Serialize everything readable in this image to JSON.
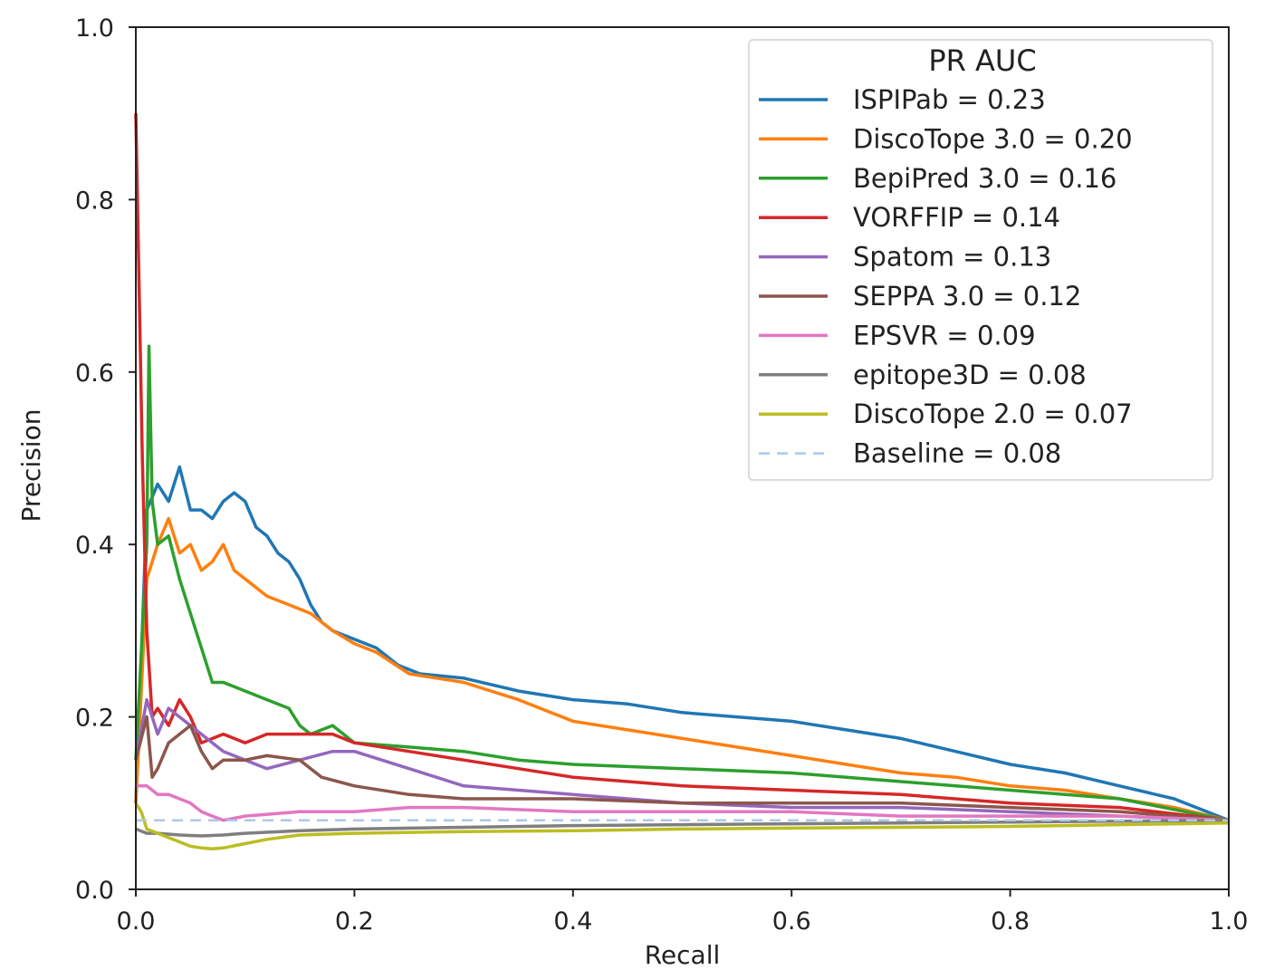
{
  "chart_data": {
    "type": "line",
    "title": "",
    "xlabel": "Recall",
    "ylabel": "Precision",
    "xlim": [
      0.0,
      1.0
    ],
    "ylim": [
      0.0,
      1.0
    ],
    "xticks": [
      "0.0",
      "0.2",
      "0.4",
      "0.6",
      "0.8",
      "1.0"
    ],
    "yticks": [
      "0.0",
      "0.2",
      "0.4",
      "0.6",
      "0.8",
      "1.0"
    ],
    "grid": false,
    "legend": {
      "title": "PR AUC",
      "position": "top-right"
    },
    "series": [
      {
        "name": "ISPIPab = 0.23",
        "color": "#1f77b4",
        "style": "solid",
        "x": [
          0.0,
          0.01,
          0.02,
          0.03,
          0.04,
          0.05,
          0.06,
          0.07,
          0.08,
          0.09,
          0.1,
          0.11,
          0.12,
          0.13,
          0.14,
          0.15,
          0.16,
          0.17,
          0.18,
          0.2,
          0.22,
          0.24,
          0.26,
          0.3,
          0.35,
          0.4,
          0.45,
          0.5,
          0.55,
          0.6,
          0.65,
          0.7,
          0.75,
          0.8,
          0.85,
          0.9,
          0.95,
          1.0
        ],
        "y": [
          0.1,
          0.44,
          0.47,
          0.45,
          0.49,
          0.44,
          0.44,
          0.43,
          0.45,
          0.46,
          0.45,
          0.42,
          0.41,
          0.39,
          0.38,
          0.36,
          0.33,
          0.31,
          0.3,
          0.29,
          0.28,
          0.26,
          0.25,
          0.245,
          0.23,
          0.22,
          0.215,
          0.205,
          0.2,
          0.195,
          0.185,
          0.175,
          0.16,
          0.145,
          0.135,
          0.12,
          0.105,
          0.08
        ]
      },
      {
        "name": "DiscoTope 3.0 = 0.20",
        "color": "#ff7f0e",
        "style": "solid",
        "x": [
          0.0,
          0.01,
          0.02,
          0.03,
          0.04,
          0.05,
          0.06,
          0.07,
          0.08,
          0.09,
          0.1,
          0.12,
          0.14,
          0.16,
          0.18,
          0.2,
          0.22,
          0.25,
          0.3,
          0.35,
          0.4,
          0.45,
          0.5,
          0.55,
          0.6,
          0.65,
          0.7,
          0.75,
          0.8,
          0.85,
          0.9,
          0.95,
          1.0
        ],
        "y": [
          0.1,
          0.36,
          0.4,
          0.43,
          0.39,
          0.4,
          0.37,
          0.38,
          0.4,
          0.37,
          0.36,
          0.34,
          0.33,
          0.32,
          0.3,
          0.285,
          0.275,
          0.25,
          0.24,
          0.22,
          0.195,
          0.185,
          0.175,
          0.165,
          0.155,
          0.145,
          0.135,
          0.13,
          0.12,
          0.115,
          0.105,
          0.095,
          0.08
        ]
      },
      {
        "name": "BepiPred 3.0 = 0.16",
        "color": "#2ca02c",
        "style": "solid",
        "x": [
          0.0,
          0.01,
          0.012,
          0.015,
          0.02,
          0.03,
          0.04,
          0.05,
          0.06,
          0.07,
          0.08,
          0.1,
          0.12,
          0.14,
          0.15,
          0.16,
          0.18,
          0.2,
          0.25,
          0.3,
          0.35,
          0.4,
          0.5,
          0.6,
          0.7,
          0.8,
          0.9,
          1.0
        ],
        "y": [
          0.15,
          0.4,
          0.63,
          0.45,
          0.4,
          0.41,
          0.36,
          0.32,
          0.28,
          0.24,
          0.24,
          0.23,
          0.22,
          0.21,
          0.19,
          0.18,
          0.19,
          0.17,
          0.165,
          0.16,
          0.15,
          0.145,
          0.14,
          0.135,
          0.125,
          0.115,
          0.105,
          0.08
        ]
      },
      {
        "name": "VORFFIP = 0.14",
        "color": "#d62728",
        "style": "solid",
        "x": [
          0.0,
          0.003,
          0.006,
          0.01,
          0.015,
          0.02,
          0.03,
          0.04,
          0.05,
          0.06,
          0.08,
          0.1,
          0.12,
          0.15,
          0.18,
          0.2,
          0.25,
          0.3,
          0.35,
          0.4,
          0.5,
          0.6,
          0.7,
          0.8,
          0.9,
          1.0
        ],
        "y": [
          0.9,
          0.7,
          0.5,
          0.3,
          0.2,
          0.21,
          0.19,
          0.22,
          0.2,
          0.17,
          0.18,
          0.17,
          0.18,
          0.18,
          0.18,
          0.17,
          0.16,
          0.15,
          0.14,
          0.13,
          0.12,
          0.115,
          0.11,
          0.1,
          0.095,
          0.08
        ]
      },
      {
        "name": "Spatom = 0.13",
        "color": "#9467bd",
        "style": "solid",
        "x": [
          0.0,
          0.01,
          0.02,
          0.03,
          0.04,
          0.05,
          0.06,
          0.07,
          0.08,
          0.1,
          0.12,
          0.15,
          0.18,
          0.2,
          0.25,
          0.3,
          0.4,
          0.5,
          0.6,
          0.7,
          0.8,
          0.9,
          1.0
        ],
        "y": [
          0.15,
          0.22,
          0.18,
          0.21,
          0.2,
          0.19,
          0.18,
          0.17,
          0.16,
          0.15,
          0.14,
          0.15,
          0.16,
          0.16,
          0.14,
          0.12,
          0.11,
          0.1,
          0.095,
          0.095,
          0.09,
          0.085,
          0.08
        ]
      },
      {
        "name": "SEPPA 3.0 = 0.12",
        "color": "#8c564b",
        "style": "solid",
        "x": [
          0.0,
          0.01,
          0.015,
          0.02,
          0.03,
          0.04,
          0.05,
          0.06,
          0.07,
          0.08,
          0.1,
          0.12,
          0.15,
          0.17,
          0.2,
          0.25,
          0.3,
          0.4,
          0.5,
          0.6,
          0.7,
          0.8,
          0.9,
          1.0
        ],
        "y": [
          0.15,
          0.2,
          0.13,
          0.14,
          0.17,
          0.18,
          0.19,
          0.16,
          0.14,
          0.15,
          0.15,
          0.155,
          0.15,
          0.13,
          0.12,
          0.11,
          0.105,
          0.105,
          0.1,
          0.1,
          0.1,
          0.095,
          0.09,
          0.08
        ]
      },
      {
        "name": "EPSVR = 0.09",
        "color": "#e377c2",
        "style": "solid",
        "x": [
          0.0,
          0.01,
          0.02,
          0.03,
          0.04,
          0.05,
          0.06,
          0.07,
          0.08,
          0.1,
          0.15,
          0.2,
          0.25,
          0.3,
          0.4,
          0.5,
          0.6,
          0.7,
          0.8,
          0.9,
          1.0
        ],
        "y": [
          0.12,
          0.12,
          0.11,
          0.11,
          0.105,
          0.1,
          0.09,
          0.085,
          0.08,
          0.085,
          0.09,
          0.09,
          0.095,
          0.095,
          0.09,
          0.09,
          0.09,
          0.085,
          0.085,
          0.085,
          0.08
        ]
      },
      {
        "name": "epitope3D = 0.08",
        "color": "#7f7f7f",
        "style": "solid",
        "x": [
          0.0,
          0.01,
          0.02,
          0.04,
          0.06,
          0.08,
          0.1,
          0.15,
          0.2,
          0.3,
          0.4,
          0.5,
          0.6,
          0.7,
          0.8,
          0.9,
          1.0
        ],
        "y": [
          0.07,
          0.065,
          0.065,
          0.063,
          0.062,
          0.063,
          0.065,
          0.068,
          0.07,
          0.072,
          0.074,
          0.075,
          0.076,
          0.077,
          0.078,
          0.079,
          0.08
        ]
      },
      {
        "name": "DiscoTope 2.0 = 0.07",
        "color": "#bcbd22",
        "style": "solid",
        "x": [
          0.0,
          0.005,
          0.01,
          0.02,
          0.03,
          0.04,
          0.05,
          0.06,
          0.07,
          0.08,
          0.1,
          0.12,
          0.15,
          0.2,
          0.3,
          0.4,
          0.5,
          0.6,
          0.7,
          0.8,
          0.9,
          1.0
        ],
        "y": [
          0.1,
          0.09,
          0.07,
          0.065,
          0.06,
          0.055,
          0.05,
          0.048,
          0.047,
          0.048,
          0.053,
          0.058,
          0.063,
          0.065,
          0.067,
          0.068,
          0.07,
          0.071,
          0.072,
          0.073,
          0.075,
          0.077
        ]
      },
      {
        "name": "Baseline = 0.08",
        "color": "#aec7e8",
        "style": "dashed",
        "x": [
          0.0,
          1.0
        ],
        "y": [
          0.08,
          0.08
        ]
      }
    ]
  }
}
